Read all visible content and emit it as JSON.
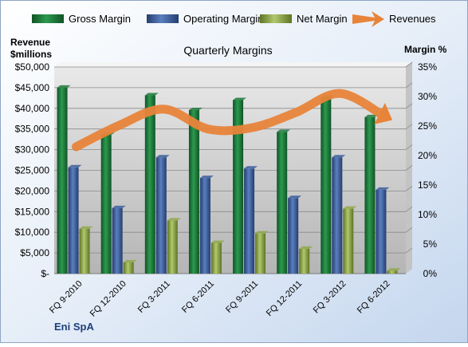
{
  "chart_data": {
    "type": "bar",
    "title": "Quarterly Margins",
    "company": "Eni SpA",
    "left_axis_label": [
      "Revenue",
      "$millions"
    ],
    "right_axis_label": "Margin %",
    "categories": [
      "FQ 9-2010",
      "FQ 12-2010",
      "FQ 3-2011",
      "FQ 6-2011",
      "FQ 9-2011",
      "FQ 12-2011",
      "FQ 3-2012",
      "FQ 6-2012"
    ],
    "left_ticks": [
      "$-",
      "$5,000",
      "$10,000",
      "$15,000",
      "$20,000",
      "$25,000",
      "$30,000",
      "$35,000",
      "$40,000",
      "$45,000",
      "$50,000"
    ],
    "right_ticks": [
      "0%",
      "5%",
      "10%",
      "15%",
      "20%",
      "25%",
      "30%",
      "35%"
    ],
    "left_ylim": [
      0,
      50000
    ],
    "right_ylim": [
      0,
      35
    ],
    "grid": true,
    "legend_position": "top",
    "series": [
      {
        "name": "Gross Margin",
        "axis": "right",
        "kind": "bar",
        "color": "#1e7a3c",
        "values": [
          31.5,
          23.5,
          30.2,
          27.7,
          29.4,
          24.0,
          29.8,
          26.5
        ]
      },
      {
        "name": "Operating Margin",
        "axis": "right",
        "kind": "bar",
        "color": "#3b5e9c",
        "values": [
          18.0,
          11.1,
          19.7,
          16.2,
          17.8,
          12.8,
          19.7,
          14.2
        ]
      },
      {
        "name": "Net Margin",
        "axis": "right",
        "kind": "bar",
        "color": "#8fa84a",
        "values": [
          7.6,
          1.9,
          9.0,
          5.2,
          6.8,
          4.2,
          11.0,
          0.5
        ]
      },
      {
        "name": "Revenues",
        "axis": "left",
        "kind": "line",
        "color": "#e8843a",
        "values": [
          30700,
          36000,
          39800,
          35000,
          35300,
          39000,
          43600,
          38200
        ]
      }
    ]
  }
}
